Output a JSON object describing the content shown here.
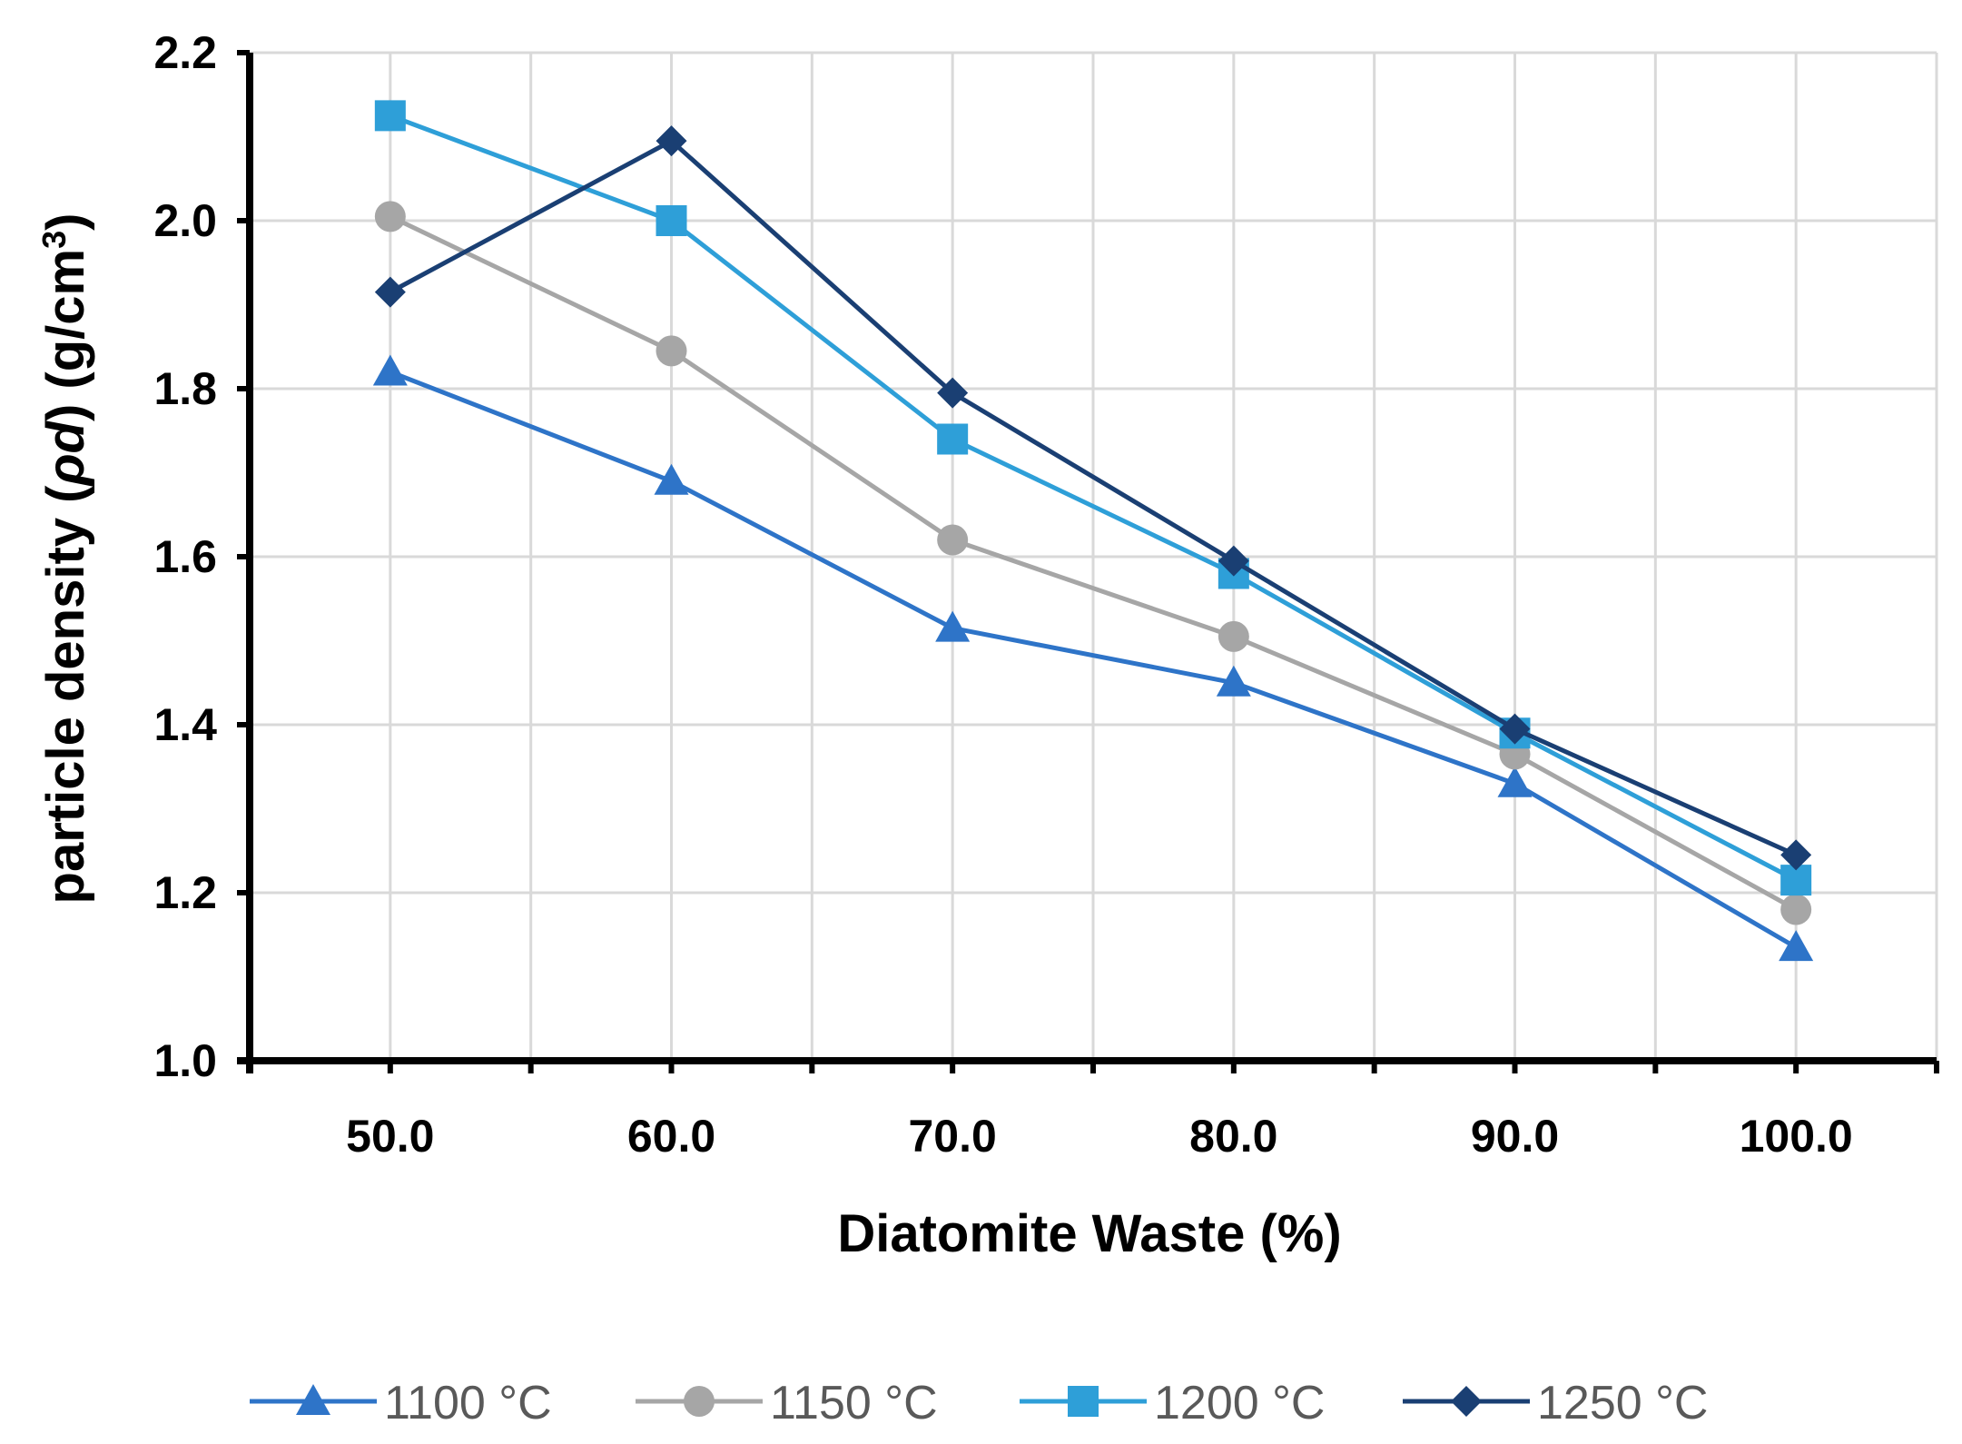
{
  "chart_data": {
    "type": "line",
    "title": "",
    "xlabel": "Diatomite Waste (%)",
    "ylabel_main": "particle density (",
    "ylabel_italic": "ρd",
    "ylabel_units": ") (g/cm",
    "ylabel_sup": "3",
    "ylabel_close": ")",
    "x": [
      50.0,
      60.0,
      70.0,
      80.0,
      90.0,
      100.0
    ],
    "x_tick_labels": [
      "50.0",
      "60.0",
      "70.0",
      "80.0",
      "90.0",
      "100.0"
    ],
    "xlim": [
      45,
      105
    ],
    "ylim": [
      1.0,
      2.2
    ],
    "y_ticks": [
      1.0,
      1.2,
      1.4,
      1.6,
      1.8,
      2.0,
      2.2
    ],
    "y_tick_labels": [
      "1.0",
      "1.2",
      "1.4",
      "1.6",
      "1.8",
      "2.0",
      "2.2"
    ],
    "grid": true,
    "legend_position": "bottom",
    "series": [
      {
        "name": "1100 °C",
        "marker": "triangle",
        "color": "#2E74C8",
        "values": [
          1.82,
          1.69,
          1.515,
          1.45,
          1.33,
          1.135
        ]
      },
      {
        "name": "1150 °C",
        "marker": "circle",
        "color": "#A6A6A6",
        "values": [
          2.005,
          1.845,
          1.62,
          1.505,
          1.365,
          1.18
        ]
      },
      {
        "name": "1200 °C",
        "marker": "square",
        "color": "#2E9FD8",
        "values": [
          2.125,
          2.0,
          1.74,
          1.58,
          1.39,
          1.215
        ]
      },
      {
        "name": "1250 °C",
        "marker": "diamond",
        "color": "#1A3F73",
        "values": [
          1.915,
          2.095,
          1.795,
          1.595,
          1.395,
          1.245
        ]
      }
    ]
  }
}
